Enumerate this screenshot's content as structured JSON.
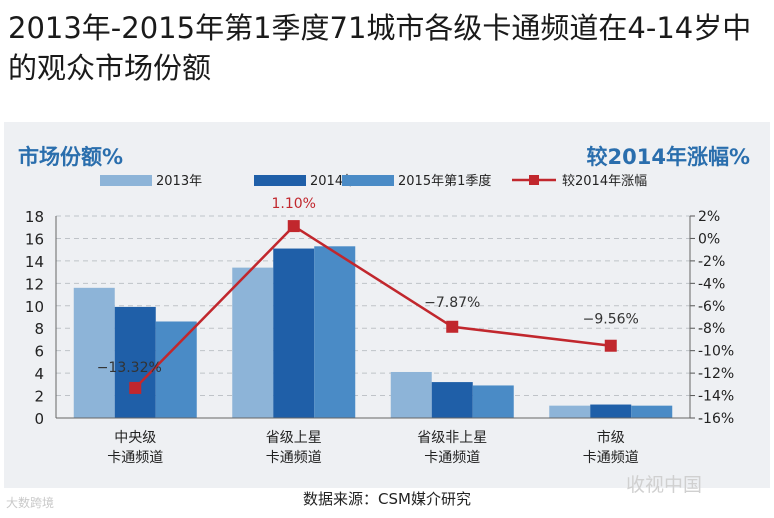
{
  "page": {
    "title": "2013年-2015年第1季度71城市各级卡通频道在4-14岁中的观众市场份额",
    "source": "数据来源：CSM媒介研究",
    "watermark_left": "大数跨境",
    "watermark_right": "收视中国"
  },
  "chart_data": {
    "type": "bar",
    "title": "2013年-2015年第1季度71城市各级卡通频道在4-14岁中的观众市场份额",
    "ylabel_left": "市场份额%",
    "ylabel_right": "较2014年涨幅%",
    "categories": [
      [
        "中央级",
        "卡通频道"
      ],
      [
        "省级上星",
        "卡通频道"
      ],
      [
        "省级非上星",
        "卡通频道"
      ],
      [
        "市级",
        "卡通频道"
      ]
    ],
    "series": [
      {
        "name": "2013年",
        "kind": "bar",
        "axis": "left",
        "color": "#8db4d8",
        "values": [
          11.6,
          13.4,
          4.1,
          1.1
        ]
      },
      {
        "name": "2014年",
        "kind": "bar",
        "axis": "left",
        "color": "#1f5fa8",
        "values": [
          9.9,
          15.1,
          3.2,
          1.2
        ]
      },
      {
        "name": "2015年第1季度",
        "kind": "bar",
        "axis": "left",
        "color": "#4a8bc6",
        "values": [
          8.6,
          15.3,
          2.9,
          1.1
        ]
      },
      {
        "name": "较2014年涨幅",
        "kind": "line",
        "axis": "right",
        "color": "#c1272d",
        "values": [
          -13.32,
          1.1,
          -7.87,
          -9.56
        ],
        "labels": [
          "−13.32%",
          "1.10%",
          "−7.87%",
          "−9.56%"
        ]
      }
    ],
    "ylim_left": [
      0,
      18
    ],
    "yticks_left": [
      "0",
      "2",
      "4",
      "6",
      "8",
      "10",
      "12",
      "14",
      "16",
      "18"
    ],
    "ylim_right": [
      -16,
      2
    ],
    "yticks_right": [
      "-16%",
      "-14%",
      "-12%",
      "-10%",
      "-8%",
      "-6%",
      "-4%",
      "-2%",
      "0%",
      "2%"
    ],
    "grid": true,
    "legend_position": "top"
  }
}
